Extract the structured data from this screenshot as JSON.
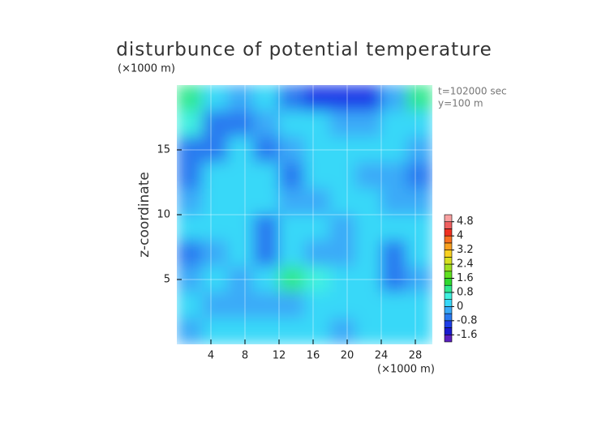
{
  "chart_data": {
    "type": "contour",
    "title": "disturbunce of potential temperature",
    "y_unit": "(×1000 m)",
    "x_unit": "(×1000 m)",
    "annotations": [
      "t=102000 sec",
      "y=100 m"
    ],
    "ylabel": "z-coordinate",
    "xlim": [
      0,
      30
    ],
    "ylim": [
      0,
      20
    ],
    "xticks": [
      4,
      8,
      12,
      16,
      20,
      24,
      28
    ],
    "yticks": [
      5,
      10,
      15
    ],
    "grid": true,
    "x": [
      1.5,
      4.5,
      7.5,
      10.5,
      13.5,
      16.5,
      19.5,
      22.5,
      25.5,
      28.5
    ],
    "y": [
      19,
      17,
      15,
      13,
      11,
      9,
      7,
      5,
      3,
      1
    ],
    "values": [
      [
        0.9,
        0.2,
        -0.3,
        0.1,
        -0.5,
        -1.0,
        -1.2,
        -0.8,
        -0.2,
        0.9
      ],
      [
        0.6,
        -0.6,
        -0.6,
        -0.2,
        0.2,
        0.1,
        -0.2,
        -0.3,
        0.0,
        0.3
      ],
      [
        -0.5,
        -0.5,
        0.1,
        -0.5,
        -0.2,
        0.2,
        0.1,
        0.2,
        0.1,
        -0.4
      ],
      [
        -0.5,
        0.1,
        0.2,
        0.2,
        -0.5,
        0.2,
        0.2,
        -0.3,
        -0.4,
        -0.5
      ],
      [
        -0.3,
        0.2,
        0.1,
        0.1,
        -0.3,
        -0.4,
        0.2,
        0.3,
        -0.2,
        -0.1
      ],
      [
        0.2,
        0.2,
        0.2,
        -0.5,
        0.1,
        0.2,
        -0.4,
        0.2,
        0.3,
        0.2
      ],
      [
        -0.5,
        -0.3,
        0.1,
        -0.6,
        0.2,
        -0.3,
        -0.2,
        0.2,
        -0.5,
        0.1
      ],
      [
        -0.4,
        0.2,
        -0.3,
        0.3,
        0.9,
        0.7,
        0.3,
        0.1,
        -0.6,
        -0.2
      ],
      [
        0.1,
        -0.3,
        -0.2,
        -0.4,
        -0.3,
        0.1,
        0.2,
        0.2,
        0.1,
        0.1
      ],
      [
        -0.3,
        0.1,
        0.2,
        0.1,
        0.2,
        0.2,
        -0.2,
        0.1,
        0.2,
        0.2
      ]
    ],
    "colorbar": {
      "lim": [
        -2.0,
        5.2
      ],
      "ticks": [
        4.8,
        4,
        3.2,
        2.4,
        1.6,
        0.8,
        0,
        -0.8,
        -1.6
      ],
      "colors": [
        "#5a1fbf",
        "#1a1acf",
        "#1e3ee8",
        "#2a7af0",
        "#3aaaf8",
        "#38d8f8",
        "#40f0e0",
        "#30e890",
        "#30d830",
        "#60e020",
        "#a0e020",
        "#d8e020",
        "#f8d020",
        "#f8a020",
        "#f87020",
        "#f03020",
        "#f06060",
        "#f8a0a0"
      ]
    }
  }
}
